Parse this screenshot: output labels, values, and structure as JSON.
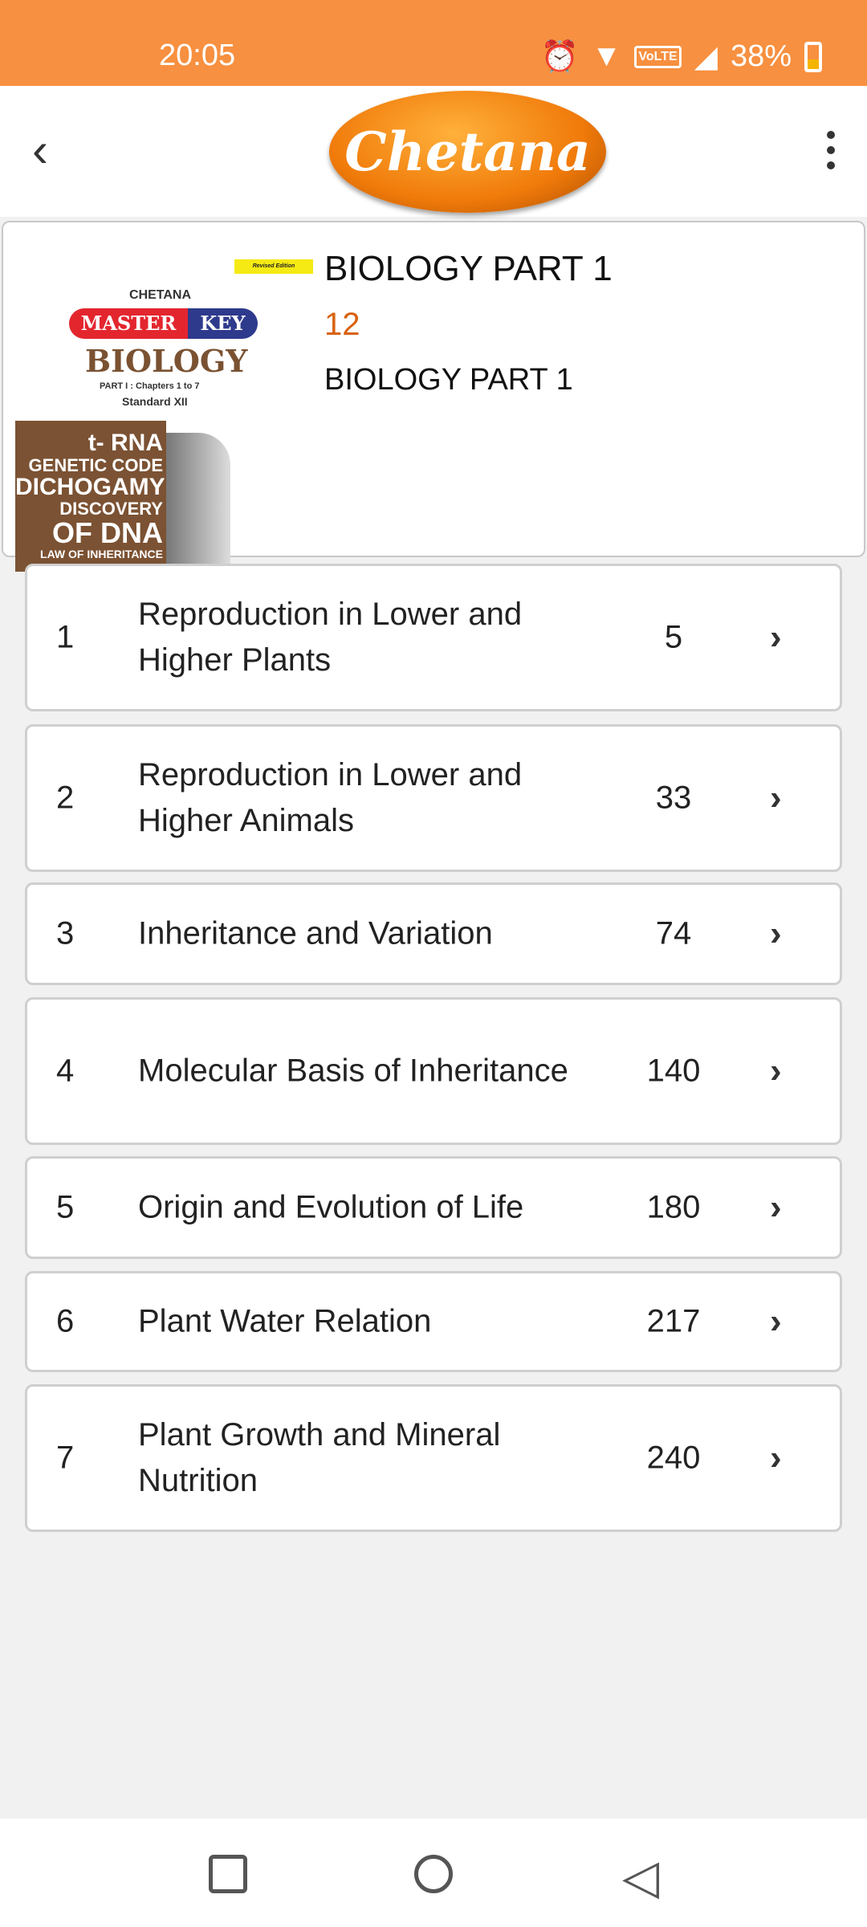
{
  "status_bar": {
    "time": "20:05",
    "battery": "38%",
    "icons": [
      "alarm-icon",
      "wifi-icon",
      "volte-icon",
      "signal-icon",
      "battery-charging-icon"
    ]
  },
  "app_bar": {
    "logo_text": "Chetana",
    "back_icon": "back-arrow-icon",
    "menu_icon": "more-vert-icon"
  },
  "book": {
    "title": "BIOLOGY PART 1",
    "standard": "12",
    "subtitle": "BIOLOGY PART 1",
    "cover": {
      "publisher": "CHETANA",
      "series_a": "MASTER",
      "series_b": "KEY",
      "subject": "BIOLOGY",
      "part": "PART I : Chapters 1 to 7",
      "standard": "Standard XII",
      "badge": "Revised Edition",
      "topics": [
        "t- RNA",
        "GENETIC CODE",
        "DICHOGAMY",
        "DISCOVERY",
        "OF DNA",
        "LAW OF INHERITANCE"
      ]
    }
  },
  "chapters": [
    {
      "no": "1",
      "title": "Reproduction in Lower and Higher Plants",
      "page": "5"
    },
    {
      "no": "2",
      "title": "Reproduction in Lower and Higher Animals",
      "page": "33"
    },
    {
      "no": "3",
      "title": "Inheritance and Variation",
      "page": "74"
    },
    {
      "no": "4",
      "title": "Molecular Basis of Inheritance",
      "page": "140"
    },
    {
      "no": "5",
      "title": "Origin and Evolution of Life",
      "page": "180"
    },
    {
      "no": "6",
      "title": "Plant Water Relation",
      "page": "217"
    },
    {
      "no": "7",
      "title": "Plant Growth and Mineral Nutrition",
      "page": "240"
    }
  ],
  "colors": {
    "status_bar": "#f79040",
    "accent": "#d9620e"
  }
}
